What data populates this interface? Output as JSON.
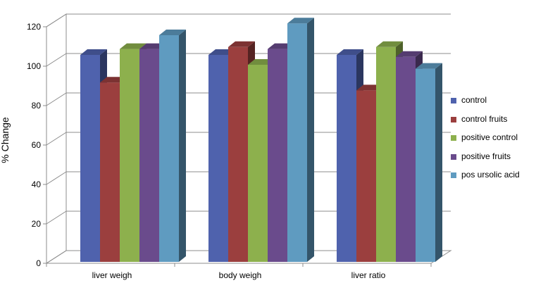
{
  "chart_data": {
    "type": "bar",
    "title": "",
    "xlabel": "",
    "ylabel": "% Change",
    "ylim": [
      0,
      120
    ],
    "yticks": [
      0,
      20,
      40,
      60,
      80,
      100,
      120
    ],
    "ytick_labels": [
      "0",
      "20",
      "40",
      "60",
      "80",
      "100",
      "120"
    ],
    "grid": true,
    "style": "3d-clustered-column",
    "legend_position": "right",
    "categories": [
      "liver weigh",
      "body weigh",
      "liver ratio"
    ],
    "series": [
      {
        "name": "control",
        "color": "#4f62ad",
        "values": [
          100,
          100,
          100
        ]
      },
      {
        "name": "control fruits",
        "color": "#9b3f3e",
        "values": [
          86,
          104,
          82
        ]
      },
      {
        "name": "positive control",
        "color": "#8db04d",
        "values": [
          103,
          95,
          104
        ]
      },
      {
        "name": "positive fruits",
        "color": "#6a4b8c",
        "values": [
          103,
          103,
          99
        ]
      },
      {
        "name": "pos ursolic acid",
        "color": "#5f9bc0",
        "values": [
          110,
          116,
          93
        ]
      }
    ]
  }
}
